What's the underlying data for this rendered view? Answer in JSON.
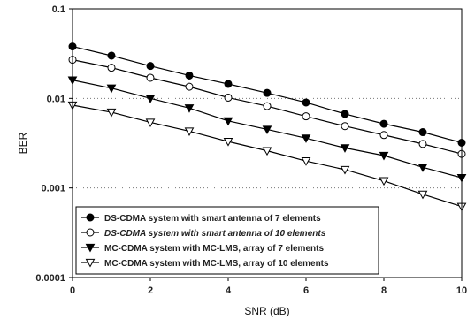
{
  "chart_data": {
    "type": "line",
    "title": "",
    "xlabel": "SNR (dB)",
    "ylabel": "BER",
    "xlim": [
      0,
      10
    ],
    "ylim": [
      0.0001,
      0.1
    ],
    "yscale": "log",
    "grid": "dotted horizontal",
    "legend_position": "bottom-left",
    "x": [
      0,
      1,
      2,
      3,
      4,
      5,
      6,
      7,
      8,
      9,
      10
    ],
    "x_ticks": [
      "0",
      "2",
      "4",
      "6",
      "8",
      "10"
    ],
    "y_ticks": [
      "0.1",
      "0.01",
      "0.001",
      "0.0001"
    ],
    "series": [
      {
        "name": "DS-CDMA system with smart antenna of 7 elements",
        "marker": "filled-circle",
        "italic": false,
        "values": [
          0.038,
          0.03,
          0.023,
          0.018,
          0.0145,
          0.0115,
          0.009,
          0.0067,
          0.0052,
          0.0042,
          0.0032
        ]
      },
      {
        "name": "DS-CDMA system with smart antenna of 10 elements",
        "marker": "open-circle",
        "italic": true,
        "values": [
          0.027,
          0.022,
          0.017,
          0.0135,
          0.0102,
          0.0082,
          0.0063,
          0.0049,
          0.0039,
          0.0031,
          0.0024
        ]
      },
      {
        "name": "MC-CDMA system with MC-LMS, array of 7 elements",
        "marker": "filled-triangle-down",
        "italic": false,
        "values": [
          0.016,
          0.013,
          0.01,
          0.0078,
          0.0056,
          0.0045,
          0.0036,
          0.0028,
          0.0023,
          0.0017,
          0.0013
        ]
      },
      {
        "name": "MC-CDMA system with MC-LMS, array of 10 elements",
        "marker": "open-triangle-down",
        "italic": false,
        "values": [
          0.0084,
          0.007,
          0.0054,
          0.0043,
          0.0033,
          0.0026,
          0.002,
          0.0016,
          0.0012,
          0.00085,
          0.00062
        ]
      }
    ]
  }
}
